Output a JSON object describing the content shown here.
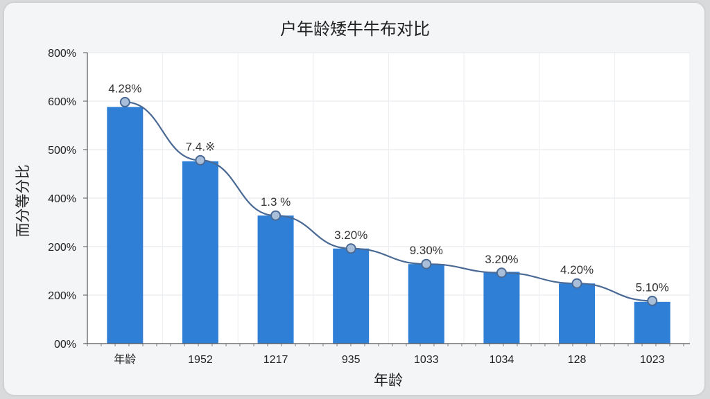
{
  "chart_data": {
    "type": "bar",
    "title": "户年龄矮牛牛布对比",
    "xlabel": "年龄",
    "ylabel": "而分等分比",
    "categories": [
      "年龄",
      "1952",
      "1217",
      "935",
      "1033",
      "1034",
      "128",
      "1023"
    ],
    "yticks": [
      "00%",
      "200%",
      "200%",
      "400%",
      "500%",
      "600%",
      "800%"
    ],
    "ylim": [
      0,
      6
    ],
    "series": [
      {
        "type": "bar",
        "values": [
          4.88,
          3.76,
          2.64,
          1.96,
          1.64,
          1.48,
          1.24,
          0.86
        ],
        "color": "#2f7fd6"
      },
      {
        "type": "line",
        "values": [
          4.98,
          3.78,
          2.64,
          1.96,
          1.64,
          1.46,
          1.24,
          0.88
        ],
        "color": "#4a6a95"
      }
    ],
    "data_labels": [
      "4.28%",
      "7.4.※",
      "1.3 %",
      "3.20%",
      "9.30%",
      "3.20%",
      "4.20%",
      "5.10%"
    ],
    "grid": true
  }
}
